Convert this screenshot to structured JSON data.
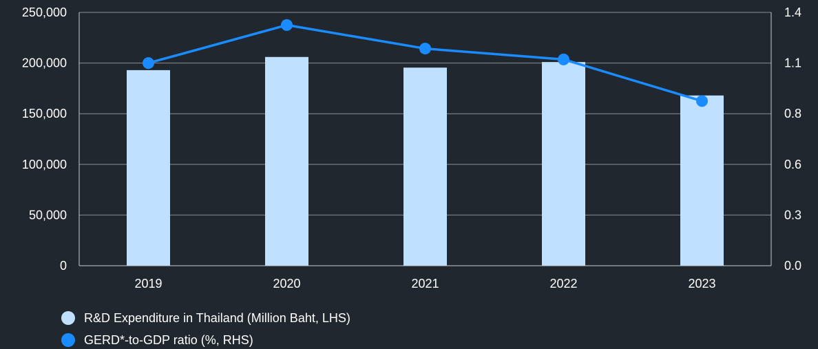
{
  "chart_data": {
    "type": "bar+line",
    "categories": [
      "2019",
      "2020",
      "2021",
      "2022",
      "2023"
    ],
    "series": [
      {
        "name": "R&D Expenditure in Thailand (Million Baht, LHS)",
        "type": "bar",
        "axis": "left",
        "values": [
          193000,
          206000,
          195500,
          201000,
          168000
        ],
        "color": "#bfe0ff"
      },
      {
        "name": "GERD*-to-GDP ratio (%, RHS)",
        "type": "line",
        "axis": "right",
        "values": [
          1.12,
          1.33,
          1.2,
          1.14,
          0.91
        ],
        "color": "#1a8cff"
      }
    ],
    "y_left": {
      "range": [
        0,
        250000
      ],
      "ticks": [
        0,
        50000,
        100000,
        150000,
        200000,
        250000
      ],
      "tick_labels": [
        "0",
        "50,000",
        "100,000",
        "150,000",
        "200,000",
        "250,000"
      ]
    },
    "y_right": {
      "range": [
        0,
        1.4
      ],
      "ticks": [
        0.0,
        0.28,
        0.56,
        0.84,
        1.12,
        1.4
      ],
      "tick_labels": [
        "0.0",
        "0.3",
        "0.6",
        "0.8",
        "1.1",
        "1.4"
      ]
    },
    "grid": true,
    "legend_position": "bottom-left",
    "background": "#21272e",
    "title": "",
    "xlabel": "",
    "ylabel": ""
  }
}
